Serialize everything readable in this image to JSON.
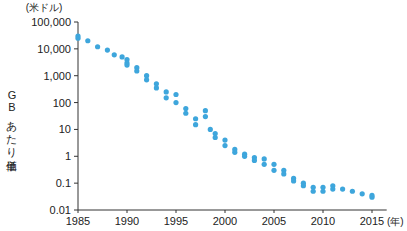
{
  "chart_data": {
    "type": "scatter",
    "x_label": "(年)",
    "y_label": "GBあたり単価",
    "annotations": [
      "(米ドル)"
    ],
    "x": [
      1985,
      1985,
      1986,
      1987,
      1988,
      1988.7,
      1989.5,
      1990,
      1990,
      1990,
      1991,
      1991,
      1992,
      1992,
      1993,
      1993,
      1994,
      1994,
      1995,
      1995,
      1996,
      1996,
      1997,
      1997,
      1998,
      1998,
      1998.5,
      1999,
      1999,
      2000,
      2000,
      2001,
      2001,
      2002,
      2002,
      2003,
      2003,
      2004,
      2004,
      2005,
      2005,
      2006,
      2006,
      2007,
      2007,
      2008,
      2008,
      2009,
      2009,
      2010,
      2010,
      2011,
      2011,
      2012,
      2013,
      2014,
      2015,
      2015
    ],
    "values": [
      30000,
      25000,
      20000,
      12000,
      9000,
      6000,
      5000,
      4000,
      3000,
      2500,
      2000,
      1500,
      1000,
      700,
      500,
      350,
      250,
      150,
      200,
      100,
      60,
      40,
      25,
      15,
      50,
      30,
      10,
      7,
      5,
      4,
      2.5,
      1.8,
      1.4,
      1.2,
      1,
      0.9,
      0.7,
      0.8,
      0.5,
      0.5,
      0.3,
      0.3,
      0.22,
      0.15,
      0.12,
      0.1,
      0.08,
      0.07,
      0.05,
      0.05,
      0.07,
      0.08,
      0.06,
      0.06,
      0.05,
      0.04,
      0.035,
      0.03
    ],
    "color": "#3ea6dc",
    "marker": "circle",
    "log": "y",
    "grid": false,
    "xlim": [
      1985,
      2016.5
    ],
    "xticks": [
      1985,
      1990,
      1995,
      2000,
      2005,
      2010,
      2015
    ],
    "ylim": [
      0.01,
      100000
    ],
    "yticks": [
      {
        "value": 100000,
        "label": "100,000"
      },
      {
        "value": 10000,
        "label": "10,000"
      },
      {
        "value": 1000,
        "label": "1,000"
      },
      100,
      10,
      1,
      0.1,
      0.01
    ]
  }
}
